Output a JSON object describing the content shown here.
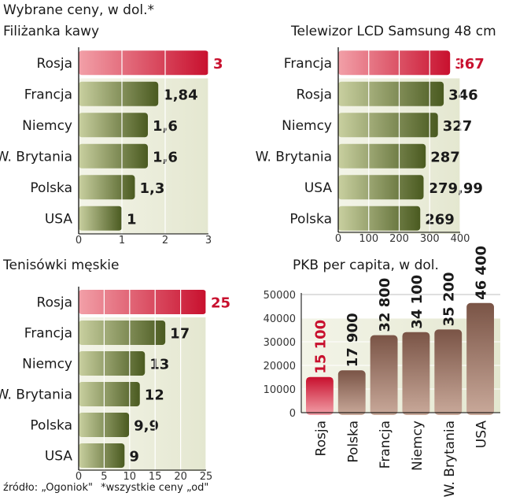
{
  "page": {
    "title": "Wybrane ceny, w dol.*",
    "footnote_source": "źródło: „Ogoniok\"",
    "footnote_note": "*wszystkie ceny „od\""
  },
  "colors": {
    "highlight_start": "#f2a0a8",
    "highlight_end": "#c8102e",
    "bar_start": "#c9d0a0",
    "bar_end": "#4a5a20",
    "col_start": "#c9a99a",
    "col_end": "#7a5446",
    "bg_panel": "#e4e7d0",
    "grid": "#ffffff",
    "axis": "#000000"
  },
  "chart_data": [
    {
      "type": "bar",
      "orientation": "horizontal",
      "title": "Filiżanka kawy",
      "categories": [
        "Rosja",
        "Francja",
        "Niemcy",
        "W. Brytania",
        "Polska",
        "USA"
      ],
      "values": [
        3,
        1.84,
        1.6,
        1.6,
        1.3,
        1
      ],
      "value_labels": [
        "3",
        "1,84",
        "1,6",
        "1,6",
        "1,3",
        "1"
      ],
      "highlight": "Rosja",
      "xlim": [
        0,
        3
      ],
      "ticks": [
        0,
        1,
        2,
        3
      ],
      "tick_labels": [
        "0",
        "1",
        "2",
        "3"
      ]
    },
    {
      "type": "bar",
      "orientation": "horizontal",
      "title": "Telewizor LCD Samsung 48 cm",
      "categories": [
        "Francja",
        "Rosja",
        "Niemcy",
        "W. Brytania",
        "USA",
        "Polska"
      ],
      "values": [
        367,
        346,
        327,
        287,
        279.99,
        269
      ],
      "value_labels": [
        "367",
        "346",
        "327",
        "287",
        "279,99",
        "269"
      ],
      "highlight": "Francja",
      "xlim": [
        0,
        400
      ],
      "ticks": [
        0,
        100,
        200,
        300,
        400
      ],
      "tick_labels": [
        "0",
        "100",
        "200",
        "300",
        "400"
      ]
    },
    {
      "type": "bar",
      "orientation": "horizontal",
      "title": "Tenisówki męskie",
      "categories": [
        "Rosja",
        "Francja",
        "Niemcy",
        "W. Brytania",
        "Polska",
        "USA"
      ],
      "values": [
        25,
        17,
        13,
        12,
        9.9,
        9
      ],
      "value_labels": [
        "25",
        "17",
        "13",
        "12",
        "9,9",
        "9"
      ],
      "highlight": "Rosja",
      "xlim": [
        0,
        25
      ],
      "ticks": [
        0,
        5,
        10,
        15,
        20,
        25
      ],
      "tick_labels": [
        "0",
        "5",
        "10",
        "15",
        "20",
        "25"
      ]
    },
    {
      "type": "bar",
      "orientation": "vertical",
      "title": "PKB per capita, w dol.",
      "categories": [
        "Rosja",
        "Polska",
        "Francja",
        "Niemcy",
        "W. Brytania",
        "USA"
      ],
      "values": [
        15100,
        17900,
        32800,
        34100,
        35200,
        46400
      ],
      "value_labels": [
        "15 100",
        "17 900",
        "32 800",
        "34 100",
        "35 200",
        "46 400"
      ],
      "highlight": "Rosja",
      "ylim": [
        0,
        50000
      ],
      "ticks": [
        0,
        10000,
        20000,
        30000,
        40000,
        50000
      ],
      "tick_labels": [
        "0",
        "10000",
        "20000",
        "30000",
        "40000",
        "50000"
      ]
    }
  ]
}
